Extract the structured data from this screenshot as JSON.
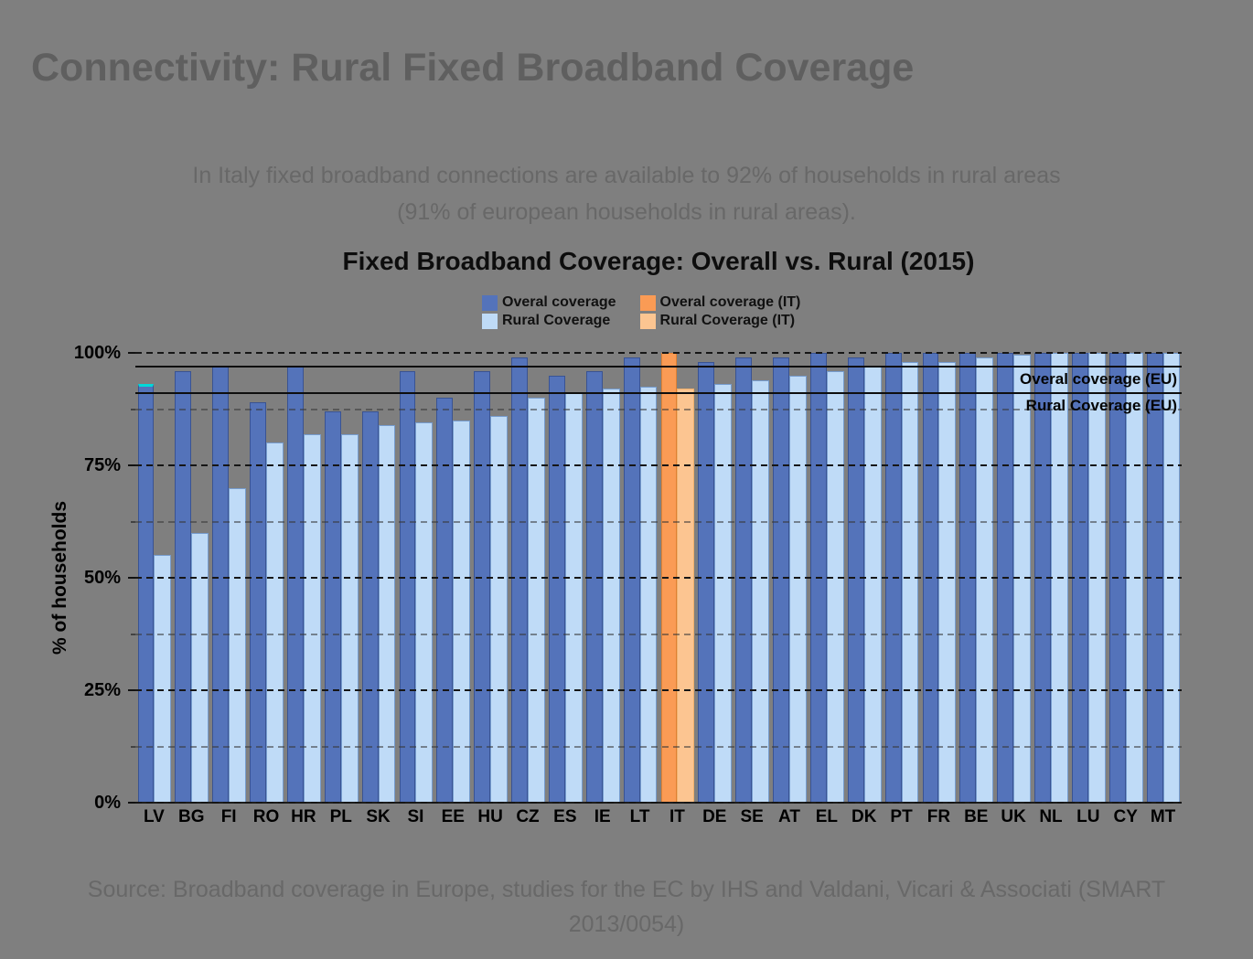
{
  "page": {
    "title": "Connectivity: Rural Fixed Broadband Coverage",
    "subtitle_line1": "In Italy fixed broadband connections are available to 92% of households in rural areas",
    "subtitle_line2": "(91% of european households in rural areas).",
    "source": "Source: Broadband coverage in Europe, studies for the EC by IHS and Valdani, Vicari & Associati (SMART 2013/0054)"
  },
  "chart_data": {
    "type": "bar",
    "title": "Fixed Broadband Coverage: Overall vs. Rural (2015)",
    "ylabel": "% of households",
    "ylim": [
      0,
      100
    ],
    "ytick_labels": [
      "0%",
      "25%",
      "50%",
      "75%",
      "100%"
    ],
    "yticks_major": [
      0,
      25,
      50,
      75,
      100
    ],
    "yticks_minor": [
      12.5,
      37.5,
      62.5,
      87.5
    ],
    "grid": "horizontal dashed, drawn over bars",
    "legend_position": "top center, two columns",
    "categories": [
      "LV",
      "BG",
      "FI",
      "RO",
      "HR",
      "PL",
      "SK",
      "SI",
      "EE",
      "HU",
      "CZ",
      "ES",
      "IE",
      "LT",
      "IT",
      "DE",
      "SE",
      "AT",
      "EL",
      "DK",
      "PT",
      "FR",
      "BE",
      "UK",
      "NL",
      "LU",
      "CY",
      "MT"
    ],
    "series": [
      {
        "name": "Overal coverage",
        "color": "#5473BA",
        "values": [
          93,
          96,
          97,
          89,
          97,
          87,
          87,
          96,
          90,
          96,
          99,
          95,
          96,
          99,
          100,
          98,
          99,
          99,
          100,
          99,
          100,
          100,
          100,
          100,
          100,
          100,
          100,
          100
        ]
      },
      {
        "name": "Rural Coverage",
        "color": "#BFDBF7",
        "values": [
          55,
          60,
          70,
          80,
          82,
          82,
          84,
          84.5,
          85,
          86,
          90,
          91,
          92,
          92.5,
          92,
          93,
          94,
          95,
          96,
          97,
          98,
          98,
          99,
          99.5,
          100,
          100,
          100,
          100
        ]
      }
    ],
    "highlight_country": {
      "code": "IT",
      "overall_color": "#FA9B55",
      "rural_color": "#FCC591",
      "legend_overall": "Overal coverage (IT)",
      "legend_rural": "Rural Coverage (IT)"
    },
    "selected_country": {
      "code": "LV",
      "marker_color": "#00D9D9"
    },
    "legend": [
      {
        "label": "Overal coverage",
        "color": "#5473BA"
      },
      {
        "label": "Rural Coverage",
        "color": "#BFDBF7"
      },
      {
        "label": "Overal coverage (IT)",
        "color": "#FA9B55"
      },
      {
        "label": "Rural Coverage (IT)",
        "color": "#FCC591"
      }
    ],
    "reference_lines": [
      {
        "label": "Overal coverage (EU)",
        "value": 97
      },
      {
        "label": "Rural Coverage (EU)",
        "value": 91
      }
    ]
  },
  "colors": {
    "background": "#7F7F7F",
    "title_text": "#5F5F5F",
    "body_text": "#686868",
    "chart_text": "#000000"
  }
}
